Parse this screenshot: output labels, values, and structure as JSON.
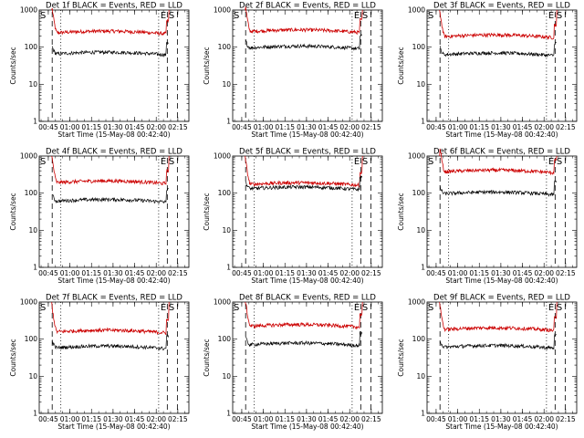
{
  "chart_data": {
    "type": "line",
    "layout": "3x3 grid of panels",
    "y_scale": "log",
    "ylim": [
      1,
      1000
    ],
    "yticks": [
      "1",
      "10",
      "100",
      "1000"
    ],
    "ylabel": "Counts/sec",
    "xlabel": "Start Time (15-May-08 00:42:40)",
    "xticks": [
      "00:45",
      "01:00",
      "01:15",
      "01:30",
      "01:45",
      "02:00",
      "02:15"
    ],
    "xlim_minutes": [
      -4,
      100
    ],
    "xtick_minutes": [
      2.3,
      17.3,
      32.3,
      47.3,
      62.3,
      77.3,
      92.3
    ],
    "series_legend": [
      {
        "name": "Events",
        "color": "#000000"
      },
      {
        "name": "LLD",
        "color": "#cc0000"
      }
    ],
    "marker_labels": {
      "start": "S",
      "end": "E",
      "end_s": "S"
    },
    "panels": [
      {
        "title": "Det 1f BLACK = Events, RED = LLD",
        "red_level": 240,
        "black_level": 65,
        "dashed": [
          5,
          85,
          92
        ],
        "dotted": [
          11,
          79
        ],
        "start_label": true
      },
      {
        "title": "Det 2f BLACK = Events, RED = LLD",
        "red_level": 260,
        "black_level": 95,
        "dashed": [
          5,
          85,
          92
        ],
        "dotted": [
          11,
          79
        ],
        "start_label": true
      },
      {
        "title": "Det 3f BLACK = Events, RED = LLD",
        "red_level": 190,
        "black_level": 62,
        "dashed": [
          5,
          85,
          92
        ],
        "dotted": [
          11,
          79
        ],
        "start_label": true
      },
      {
        "title": "Det 4f BLACK = Events, RED = LLD",
        "red_level": 190,
        "black_level": 60,
        "dashed": [
          5,
          85,
          92
        ],
        "dotted": [
          11,
          79
        ],
        "start_label": true
      },
      {
        "title": "Det 5f BLACK = Events, RED = LLD",
        "red_level": 170,
        "black_level": 130,
        "dashed": [
          5,
          85,
          92
        ],
        "dotted": [
          11,
          79
        ],
        "start_label": false
      },
      {
        "title": "Det 6f BLACK = Events, RED = LLD",
        "red_level": 370,
        "black_level": 95,
        "dashed": [
          5,
          85,
          92
        ],
        "dotted": [
          11,
          79
        ],
        "start_label": true
      },
      {
        "title": "Det 7f BLACK = Events, RED = LLD",
        "red_level": 155,
        "black_level": 58,
        "dashed": [
          5,
          85,
          92
        ],
        "dotted": [
          11,
          79
        ],
        "start_label": true
      },
      {
        "title": "Det 8f BLACK = Events, RED = LLD",
        "red_level": 220,
        "black_level": 70,
        "dashed": [
          5,
          85,
          92
        ],
        "dotted": [
          11,
          79
        ],
        "start_label": true
      },
      {
        "title": "Det 9f BLACK = Events, RED = LLD",
        "red_level": 180,
        "black_level": 60,
        "dashed": [
          5,
          85,
          92
        ],
        "dotted": [
          11,
          79
        ],
        "start_label": true
      }
    ]
  }
}
